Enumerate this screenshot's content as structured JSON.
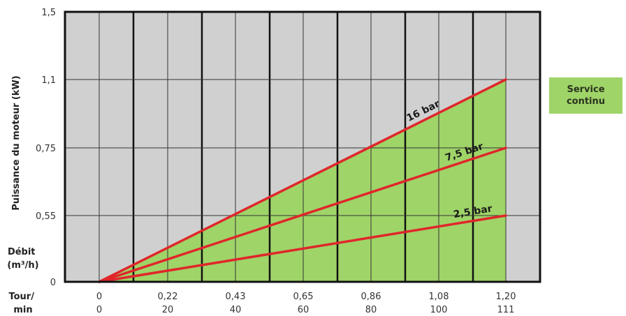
{
  "chart_data": {
    "type": "area",
    "title": "",
    "ylabel": "Puissance du moteur (kW)",
    "xlabel_flow": "Débit\n(m³/h)",
    "xlabel_speed": "Tour/\nmin",
    "y_ticks": [
      "0",
      "0,55",
      "0,75",
      "1,1",
      "1,5"
    ],
    "x_flow_ticks": [
      "0",
      "0,22",
      "0,43",
      "0,65",
      "0,86",
      "1,08",
      "1,20"
    ],
    "x_speed_ticks": [
      "0",
      "20",
      "40",
      "60",
      "80",
      "100",
      "111"
    ],
    "series": [
      {
        "name": "16 bar",
        "x": [
          0,
          1.2
        ],
        "y": [
          0,
          1.1
        ]
      },
      {
        "name": "7,5 bar",
        "x": [
          0,
          1.2
        ],
        "y": [
          0,
          0.75
        ]
      },
      {
        "name": "2,5 bar",
        "x": [
          0,
          1.2
        ],
        "y": [
          0,
          0.55
        ]
      }
    ],
    "shaded_region_label": "Service continu",
    "colors": {
      "plot_bg": "#d0d0d0",
      "shaded": "#9fd468",
      "line": "#e0262b",
      "frame": "#111111"
    }
  },
  "legend": {
    "line1": "Service",
    "line2": "continu"
  }
}
